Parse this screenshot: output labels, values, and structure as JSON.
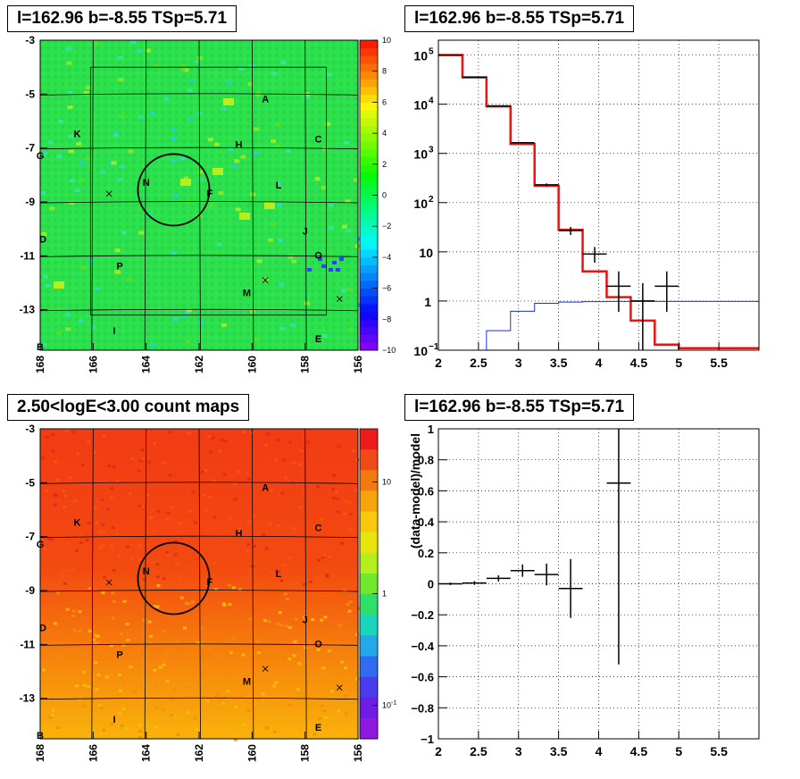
{
  "panels": {
    "tl_title": "l=162.96 b=-8.55 TSp=5.71",
    "tr_title": "l=162.96 b=-8.55 TSp=5.71",
    "bl_title": "2.50<logE<3.00 count maps",
    "br_title": "l=162.96 b=-8.55 TSp=5.71"
  },
  "chart_data": [
    {
      "type": "heatmap",
      "id": "residual-map",
      "xlim": [
        168,
        156
      ],
      "ylim": [
        -14.5,
        -3
      ],
      "x_ticks": [
        "168",
        "166",
        "164",
        "162",
        "160",
        "158",
        "156"
      ],
      "y_ticks": [
        "-3",
        "-5",
        "-7",
        "-9",
        "-11",
        "-13"
      ],
      "y_tick_values": [
        -3,
        -5,
        -7,
        -9,
        -11,
        -13
      ],
      "colorbar": {
        "min": -10,
        "max": 10,
        "ticks": [
          "10",
          "8",
          "6",
          "4",
          "2",
          "0",
          "−2",
          "−4",
          "−6",
          "−8",
          "−10"
        ],
        "tick_values": [
          10,
          8,
          6,
          4,
          2,
          0,
          -2,
          -4,
          -6,
          -8,
          -10
        ]
      },
      "labels": [
        {
          "text": "A",
          "l": 159.5,
          "b": -5.3
        },
        {
          "text": "K",
          "l": 166.6,
          "b": -6.6
        },
        {
          "text": "H",
          "l": 160.5,
          "b": -7.0
        },
        {
          "text": "C",
          "l": 157.5,
          "b": -6.8
        },
        {
          "text": "G",
          "l": 168.0,
          "b": -7.4
        },
        {
          "text": "N",
          "l": 164.0,
          "b": -8.4
        },
        {
          "text": "F",
          "l": 161.6,
          "b": -8.8
        },
        {
          "text": "L",
          "l": 159.0,
          "b": -8.5
        },
        {
          "text": "J",
          "l": 158.0,
          "b": -10.2
        },
        {
          "text": "D",
          "l": 167.9,
          "b": -10.5
        },
        {
          "text": "O",
          "l": 157.5,
          "b": -11.1
        },
        {
          "text": "P",
          "l": 165.0,
          "b": -11.5
        },
        {
          "text": "M",
          "l": 160.2,
          "b": -12.5
        },
        {
          "text": "I",
          "l": 165.2,
          "b": -13.9
        },
        {
          "text": "E",
          "l": 157.5,
          "b": -14.2
        },
        {
          "text": "B",
          "l": 168.0,
          "b": -14.5
        }
      ],
      "markers": [
        {
          "type": "x",
          "l": 165.4,
          "b": -8.7
        },
        {
          "type": "x",
          "l": 159.5,
          "b": -11.9
        },
        {
          "type": "x",
          "l": 156.7,
          "b": -12.6
        }
      ],
      "circle": {
        "l": 162.96,
        "b": -8.55,
        "r": 0.5
      }
    },
    {
      "type": "line",
      "id": "spectrum",
      "yscale": "log",
      "xlim": [
        2,
        6
      ],
      "ylim": [
        0.1,
        200000
      ],
      "x_ticks": [
        "2",
        "2.5",
        "3",
        "3.5",
        "4",
        "4.5",
        "5",
        "5.5"
      ],
      "x_tick_values": [
        2,
        2.5,
        3,
        3.5,
        4,
        4.5,
        5,
        5.5
      ],
      "y_ticks": [
        {
          "base": "10",
          "exp": "−1",
          "v": 0.1
        },
        {
          "base": "1",
          "exp": "",
          "v": 1
        },
        {
          "base": "10",
          "exp": "",
          "v": 10
        },
        {
          "base": "10",
          "exp": "2",
          "v": 100
        },
        {
          "base": "10",
          "exp": "3",
          "v": 1000
        },
        {
          "base": "10",
          "exp": "4",
          "v": 10000
        },
        {
          "base": "10",
          "exp": "5",
          "v": 100000
        }
      ],
      "bin_edges": [
        2.0,
        2.3,
        2.6,
        2.9,
        3.2,
        3.5,
        3.8,
        4.1,
        4.4,
        4.7,
        5.0,
        5.3,
        5.6,
        6.0
      ],
      "total_model": [
        100000,
        35000,
        9000,
        1550,
        220,
        28,
        4,
        1.2,
        0.4,
        0.13,
        0.11,
        0.11,
        0.11
      ],
      "source_model": [
        0.03,
        0.03,
        0.25,
        0.62,
        0.9,
        0.95,
        0.97,
        0.98,
        0.98,
        0.98,
        0.98,
        0.98,
        0.98
      ],
      "data": [
        {
          "x": 2.15,
          "y": 100000,
          "xerr": 0.15,
          "lo": 99000,
          "hi": 101000
        },
        {
          "x": 2.45,
          "y": 35500,
          "xerr": 0.15,
          "lo": 35000,
          "hi": 36000
        },
        {
          "x": 2.75,
          "y": 9200,
          "xerr": 0.15,
          "lo": 9000,
          "hi": 9400
        },
        {
          "x": 3.05,
          "y": 1650,
          "xerr": 0.15,
          "lo": 1600,
          "hi": 1700
        },
        {
          "x": 3.35,
          "y": 230,
          "xerr": 0.15,
          "lo": 215,
          "hi": 245
        },
        {
          "x": 3.65,
          "y": 27,
          "xerr": 0.15,
          "lo": 22,
          "hi": 32
        },
        {
          "x": 3.95,
          "y": 9,
          "xerr": 0.15,
          "lo": 6,
          "hi": 12.5
        },
        {
          "x": 4.25,
          "y": 2,
          "xerr": 0.15,
          "lo": 0.6,
          "hi": 4
        },
        {
          "x": 4.55,
          "y": 1,
          "xerr": 0.15,
          "lo": 0.1,
          "hi": 2.3
        },
        {
          "x": 4.85,
          "y": 2,
          "xerr": 0.15,
          "lo": 0.6,
          "hi": 4
        }
      ]
    },
    {
      "type": "heatmap",
      "id": "count-map",
      "xlim": [
        168,
        156
      ],
      "ylim": [
        -14.5,
        -3
      ],
      "x_ticks": [
        "168",
        "166",
        "164",
        "162",
        "160",
        "158",
        "156"
      ],
      "y_ticks": [
        "-3",
        "-5",
        "-7",
        "-9",
        "-11",
        "-13"
      ],
      "y_tick_values": [
        -3,
        -5,
        -7,
        -9,
        -11,
        -13
      ],
      "colorbar": {
        "scale": "log",
        "ticks": [
          {
            "text": "10",
            "sup": "",
            "v": 10
          },
          {
            "text": "1",
            "sup": "",
            "v": 1
          },
          {
            "text": "10",
            "sup": "-1",
            "v": 0.1
          }
        ]
      },
      "labels": [
        {
          "text": "A",
          "l": 159.5,
          "b": -5.3
        },
        {
          "text": "K",
          "l": 166.6,
          "b": -6.6
        },
        {
          "text": "H",
          "l": 160.5,
          "b": -7.0
        },
        {
          "text": "C",
          "l": 157.5,
          "b": -6.8
        },
        {
          "text": "G",
          "l": 168.0,
          "b": -7.4
        },
        {
          "text": "N",
          "l": 164.0,
          "b": -8.4
        },
        {
          "text": "F",
          "l": 161.6,
          "b": -8.8
        },
        {
          "text": "L",
          "l": 159.0,
          "b": -8.5
        },
        {
          "text": "J",
          "l": 158.0,
          "b": -10.2
        },
        {
          "text": "D",
          "l": 167.9,
          "b": -10.5
        },
        {
          "text": "O",
          "l": 157.5,
          "b": -11.1
        },
        {
          "text": "P",
          "l": 165.0,
          "b": -11.5
        },
        {
          "text": "M",
          "l": 160.2,
          "b": -12.5
        },
        {
          "text": "I",
          "l": 165.2,
          "b": -13.9
        },
        {
          "text": "E",
          "l": 157.5,
          "b": -14.2
        },
        {
          "text": "B",
          "l": 168.0,
          "b": -14.5
        }
      ],
      "markers": [
        {
          "type": "x",
          "l": 165.4,
          "b": -8.7
        },
        {
          "type": "x",
          "l": 159.5,
          "b": -11.9
        },
        {
          "type": "x",
          "l": 156.7,
          "b": -12.6
        }
      ],
      "circle": {
        "l": 162.96,
        "b": -8.55,
        "r": 0.5
      }
    },
    {
      "type": "scatter",
      "id": "residuals",
      "ylabel": "(data-model)/model",
      "xlim": [
        2,
        6
      ],
      "ylim": [
        -1,
        1
      ],
      "x_ticks": [
        "2",
        "2.5",
        "3",
        "3.5",
        "4",
        "4.5",
        "5",
        "5.5"
      ],
      "x_tick_values": [
        2,
        2.5,
        3,
        3.5,
        4,
        4.5,
        5,
        5.5
      ],
      "y_ticks": [
        "1",
        "0.8",
        "0.6",
        "0.4",
        "0.2",
        "0",
        "−0.2",
        "−0.4",
        "−0.6",
        "−0.8",
        "−1"
      ],
      "y_tick_values": [
        1,
        0.8,
        0.6,
        0.4,
        0.2,
        0,
        -0.2,
        -0.4,
        -0.6,
        -0.8,
        -1
      ],
      "data": [
        {
          "x": 2.15,
          "y": 0.0,
          "xerr": 0.15,
          "yerr": 0.008
        },
        {
          "x": 2.45,
          "y": 0.005,
          "xerr": 0.15,
          "yerr": 0.012
        },
        {
          "x": 2.75,
          "y": 0.035,
          "xerr": 0.15,
          "yerr": 0.02
        },
        {
          "x": 3.05,
          "y": 0.085,
          "xerr": 0.15,
          "yerr": 0.04
        },
        {
          "x": 3.35,
          "y": 0.06,
          "xerr": 0.15,
          "yerr": 0.07
        },
        {
          "x": 3.65,
          "y": -0.03,
          "xerr": 0.15,
          "yerr": 0.19
        },
        {
          "x": 4.25,
          "y": 0.65,
          "xerr": 0.15,
          "yerr": 1.17
        }
      ]
    }
  ]
}
